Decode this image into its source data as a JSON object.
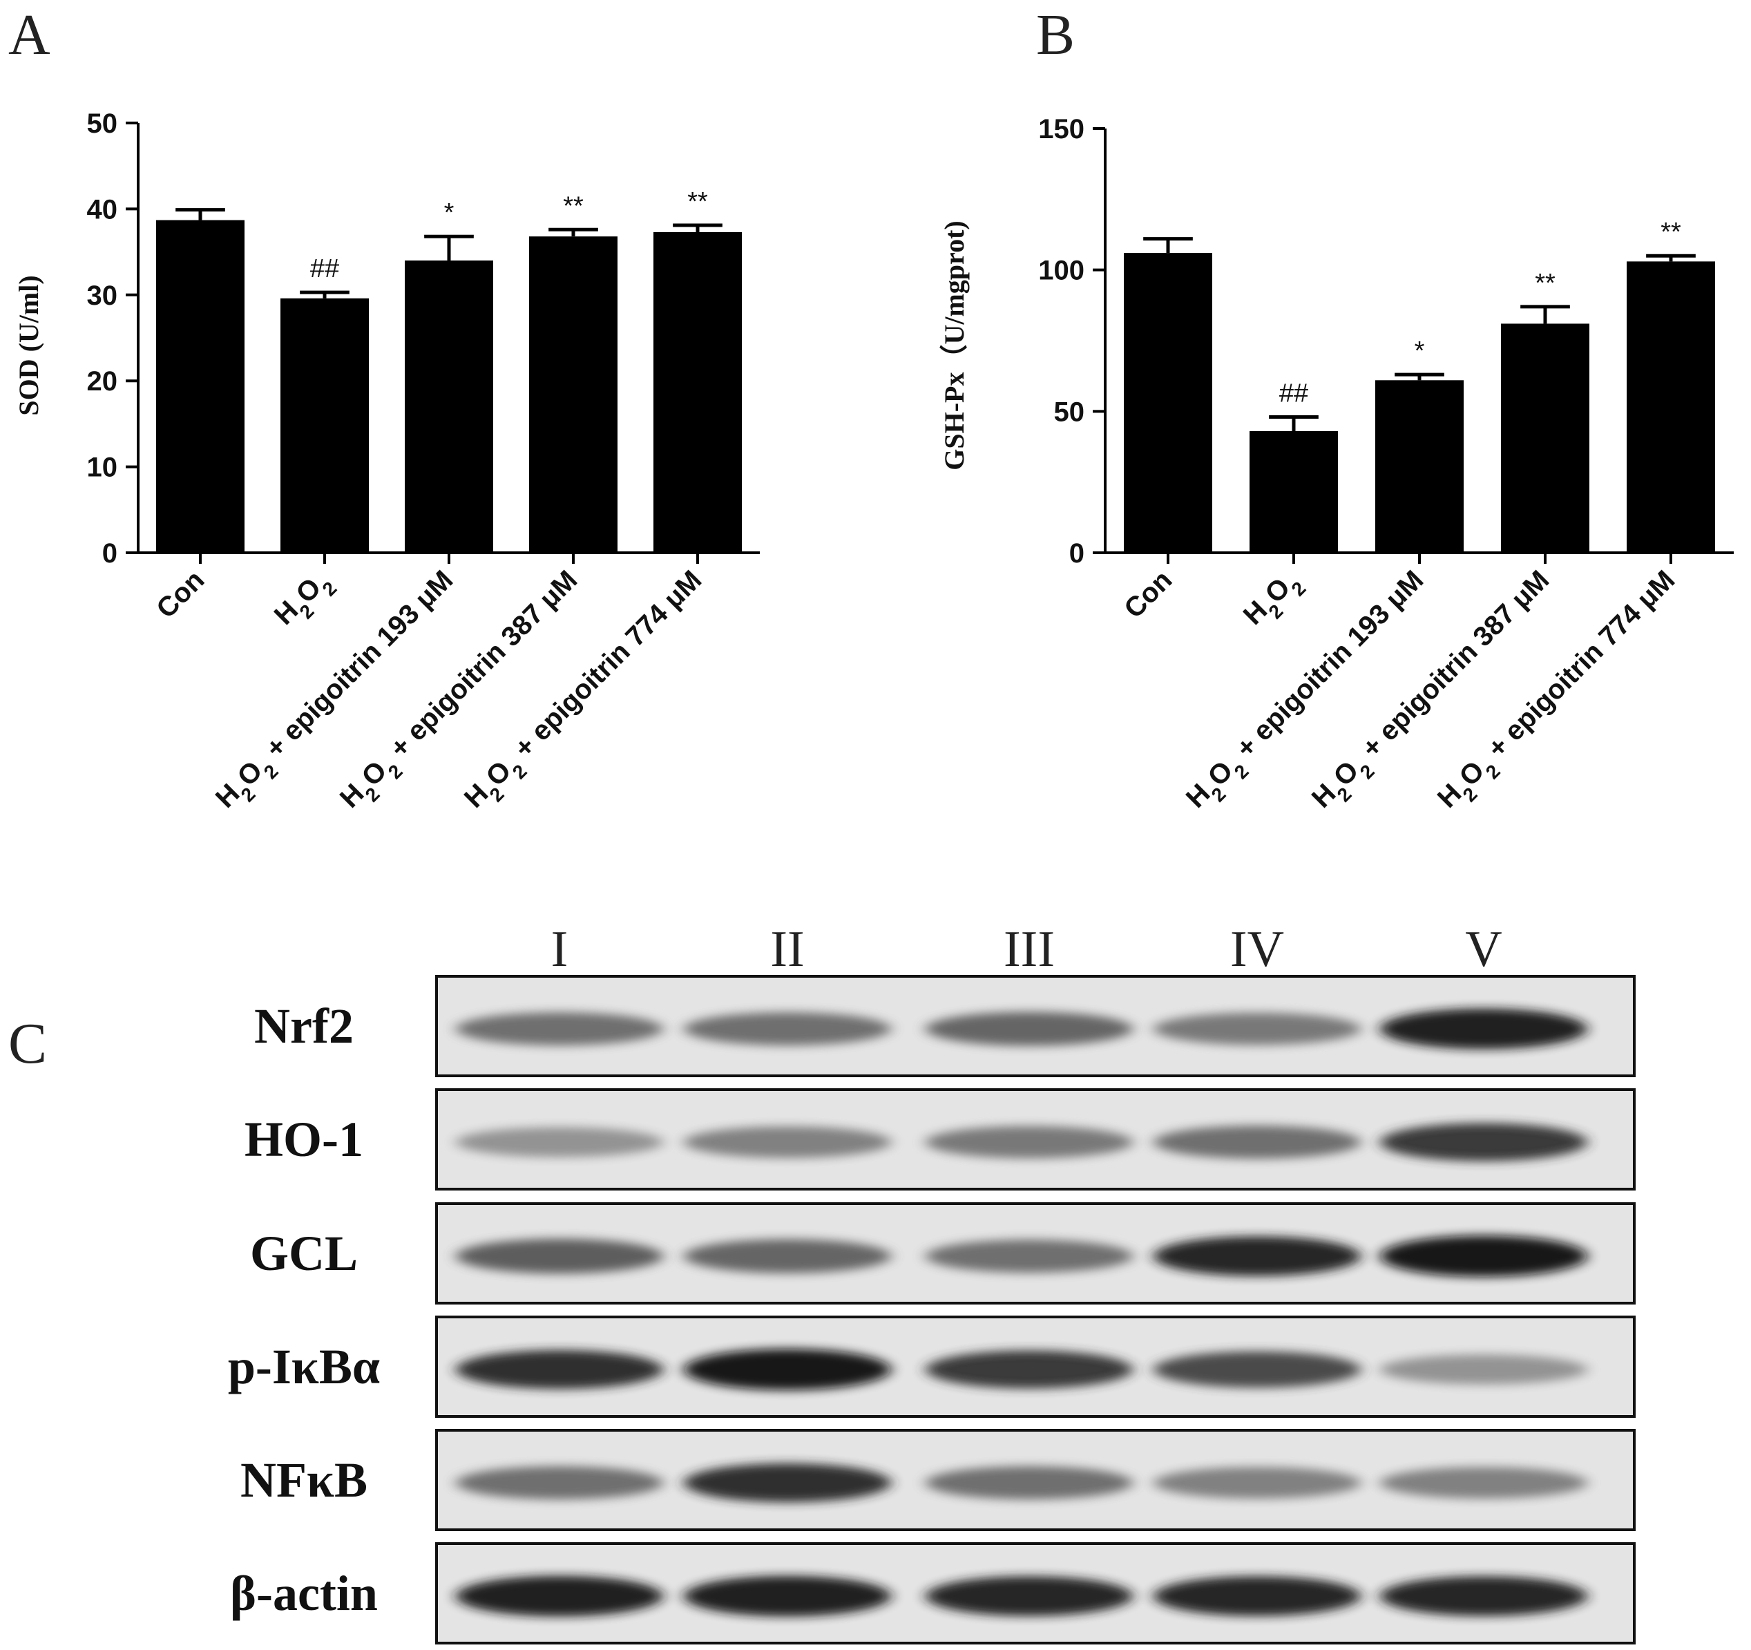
{
  "panels": {
    "A": "A",
    "B": "B",
    "C": "C"
  },
  "chart_data": [
    {
      "type": "bar",
      "panel": "A",
      "ylabel": "SOD (U/ml)",
      "xlabel": "",
      "title": "",
      "ylim": [
        0,
        50
      ],
      "yticks": [
        0,
        10,
        20,
        30,
        40,
        50
      ],
      "categories": [
        "Con",
        "H2O2",
        "H2O2 + epigoitrin 193 μM",
        "H2O2 + epigoitrin 387 μM",
        "H2O2 + epigoitrin 774 μM"
      ],
      "values": [
        38.7,
        29.6,
        34.0,
        36.8,
        37.3
      ],
      "errors": [
        1.2,
        0.7,
        2.8,
        0.8,
        0.8
      ],
      "annotations": [
        "",
        "##",
        "*",
        "**",
        "**"
      ],
      "bar_color": "#000000",
      "grid": false
    },
    {
      "type": "bar",
      "panel": "B",
      "ylabel": "GSH-Px（U/mgprot)",
      "xlabel": "",
      "title": "",
      "ylim": [
        0,
        150
      ],
      "yticks": [
        0,
        50,
        100,
        150
      ],
      "categories": [
        "Con",
        "H2O2",
        "H2O2 + epigoitrin 193 μM",
        "H2O2 + epigoitrin 387 μM",
        "H2O2 + epigoitrin 774 μM"
      ],
      "values": [
        106,
        43,
        61,
        81,
        103
      ],
      "errors": [
        5,
        5,
        2,
        6,
        2
      ],
      "annotations": [
        "",
        "##",
        "*",
        "**",
        "**"
      ],
      "bar_color": "#000000",
      "grid": false
    }
  ],
  "blot": {
    "lanes": [
      "I",
      "II",
      "III",
      "IV",
      "V"
    ],
    "rows": [
      {
        "protein": "Nrf2",
        "intensities": [
          0.5,
          0.5,
          0.55,
          0.45,
          0.95
        ]
      },
      {
        "protein": "HO-1",
        "intensities": [
          0.3,
          0.4,
          0.45,
          0.5,
          0.8
        ]
      },
      {
        "protein": "GCL",
        "intensities": [
          0.6,
          0.55,
          0.5,
          0.9,
          1.0
        ]
      },
      {
        "protein": "p-IκBα",
        "intensities": [
          0.85,
          1.0,
          0.8,
          0.7,
          0.3
        ]
      },
      {
        "protein": "NFκB",
        "intensities": [
          0.5,
          0.85,
          0.5,
          0.4,
          0.4
        ]
      },
      {
        "protein": "β-actin",
        "intensities": [
          0.95,
          0.95,
          0.9,
          0.9,
          0.9
        ]
      }
    ]
  }
}
